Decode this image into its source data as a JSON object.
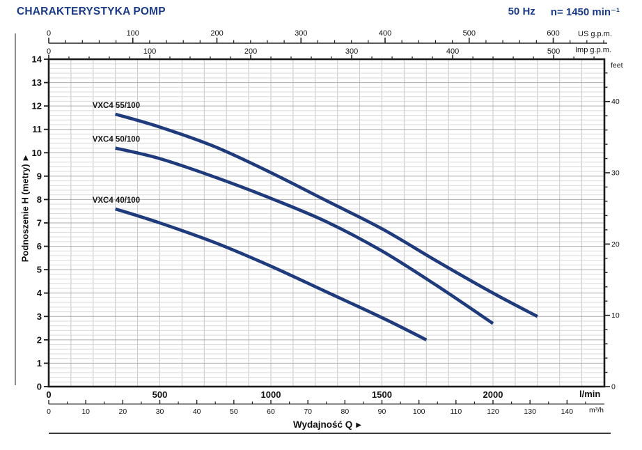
{
  "header": {
    "title": "CHARAKTERYSTYKA POMP",
    "frequency": "50 Hz",
    "speed": "n= 1450 min⁻¹"
  },
  "labels": {
    "x_axis_title": "Wydajność Q",
    "y_axis_title": "Podnoszenie H (metry)",
    "axis_arrow": "▶"
  },
  "colors": {
    "accent": "#1c3b85",
    "curve": "#203b7c",
    "grid_minor": "#d9d9d9",
    "grid_major": "#acacac",
    "grid_vertical": "#c6c6c6",
    "frame": "#1a1a1a",
    "tick": "#222222"
  },
  "chart_data": {
    "type": "line",
    "title": "CHARAKTERYSTYKA POMP",
    "subtitle": "50 Hz  n= 1450 min⁻¹",
    "xlabel": "Wydajność Q",
    "ylabel": "Podnoszenie H (metry)",
    "grid": "on",
    "axes": {
      "lmin": {
        "unit": "l/min",
        "range": [
          0,
          2500
        ],
        "majors": [
          0,
          500,
          1000,
          1500,
          2000
        ],
        "minor_step": 100
      },
      "m3h": {
        "unit": "m³/h",
        "range": [
          0,
          150
        ],
        "majors": [
          0,
          10,
          20,
          30,
          40,
          50,
          60,
          70,
          80,
          90,
          100,
          110,
          120,
          130,
          140
        ],
        "minor_step": 5
      },
      "us_gpm": {
        "unit": "US g.p.m.",
        "range": [
          0,
          660
        ],
        "majors": [
          0,
          100,
          200,
          300,
          400,
          500,
          600
        ],
        "minor_step": 20
      },
      "imp_gpm": {
        "unit": "Imp g.p.m.",
        "range": [
          0,
          550
        ],
        "majors": [
          0,
          100,
          200,
          300,
          400,
          500
        ],
        "minor_step": 20
      },
      "meters": {
        "label": "Podnoszenie H (metry)",
        "range": [
          0,
          14
        ],
        "majors": [
          0,
          1,
          2,
          3,
          4,
          5,
          6,
          7,
          8,
          9,
          10,
          11,
          12,
          13,
          14
        ],
        "minor_step": 0.2
      },
      "feet": {
        "unit": "feet",
        "range": [
          0,
          46
        ],
        "majors": [
          0,
          10,
          20,
          30,
          40
        ],
        "minor_step": 2
      }
    },
    "series": [
      {
        "name": "VXC4 55/100",
        "points_lmin_m": [
          [
            300,
            11.65
          ],
          [
            500,
            11.1
          ],
          [
            750,
            10.25
          ],
          [
            1000,
            9.15
          ],
          [
            1250,
            7.95
          ],
          [
            1500,
            6.75
          ],
          [
            1750,
            5.35
          ],
          [
            2000,
            4.0
          ],
          [
            2200,
            3.0
          ]
        ]
      },
      {
        "name": "VXC4 50/100",
        "points_lmin_m": [
          [
            300,
            10.2
          ],
          [
            500,
            9.75
          ],
          [
            750,
            8.95
          ],
          [
            1000,
            8.05
          ],
          [
            1250,
            7.05
          ],
          [
            1500,
            5.8
          ],
          [
            1750,
            4.3
          ],
          [
            2000,
            2.7
          ]
        ]
      },
      {
        "name": "VXC4 40/100",
        "points_lmin_m": [
          [
            300,
            7.6
          ],
          [
            500,
            7.0
          ],
          [
            750,
            6.15
          ],
          [
            1000,
            5.15
          ],
          [
            1250,
            4.05
          ],
          [
            1500,
            2.95
          ],
          [
            1700,
            2.0
          ]
        ]
      }
    ]
  }
}
